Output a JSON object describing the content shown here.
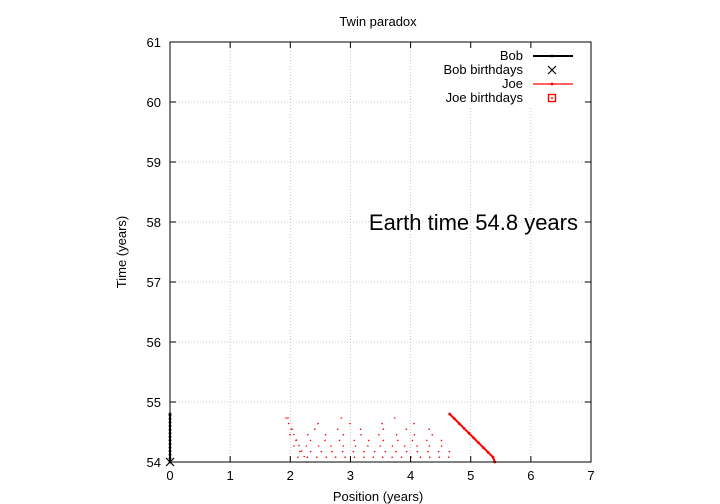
{
  "chart_data": {
    "type": "scatter",
    "title": "Twin paradox",
    "xlabel": "Position (years)",
    "ylabel": "Time (years)",
    "xlim": [
      0,
      7
    ],
    "ylim": [
      54,
      61
    ],
    "xticks": [
      0,
      1,
      2,
      3,
      4,
      5,
      6,
      7
    ],
    "yticks": [
      54,
      55,
      56,
      57,
      58,
      59,
      60,
      61
    ],
    "grid": true,
    "legend_position": "top-right",
    "annotation": "Earth time 54.8 years",
    "legend": [
      {
        "label": "Bob",
        "color": "#000000",
        "style": "line"
      },
      {
        "label": "Bob birthdays",
        "color": "#000000",
        "style": "cross"
      },
      {
        "label": "Joe",
        "color": "#ff0000",
        "style": "line"
      },
      {
        "label": "Joe birthdays",
        "color": "#ff0000",
        "style": "square"
      }
    ],
    "series": [
      {
        "name": "Bob",
        "color": "#000000",
        "x": [
          0,
          0,
          0,
          0,
          0,
          0,
          0,
          0,
          0,
          0,
          0,
          0,
          0,
          0,
          0
        ],
        "y": [
          54.0,
          54.06,
          54.12,
          54.18,
          54.24,
          54.3,
          54.36,
          54.42,
          54.48,
          54.54,
          54.6,
          54.66,
          54.72,
          54.78,
          54.8
        ]
      },
      {
        "name": "Bob birthdays",
        "color": "#000000",
        "x": [
          0
        ],
        "y": [
          54.0
        ]
      },
      {
        "name": "Joe",
        "color": "#ff0000",
        "x": [
          4.65,
          4.73,
          4.81,
          4.89,
          4.97,
          5.05,
          5.13,
          5.21,
          5.29,
          5.37,
          5.4
        ],
        "y": [
          54.8,
          54.72,
          54.64,
          54.56,
          54.48,
          54.4,
          54.32,
          54.24,
          54.16,
          54.08,
          54.0
        ]
      },
      {
        "name": "Joe birthdays",
        "color": "#ff0000",
        "x": [],
        "y": []
      }
    ]
  }
}
